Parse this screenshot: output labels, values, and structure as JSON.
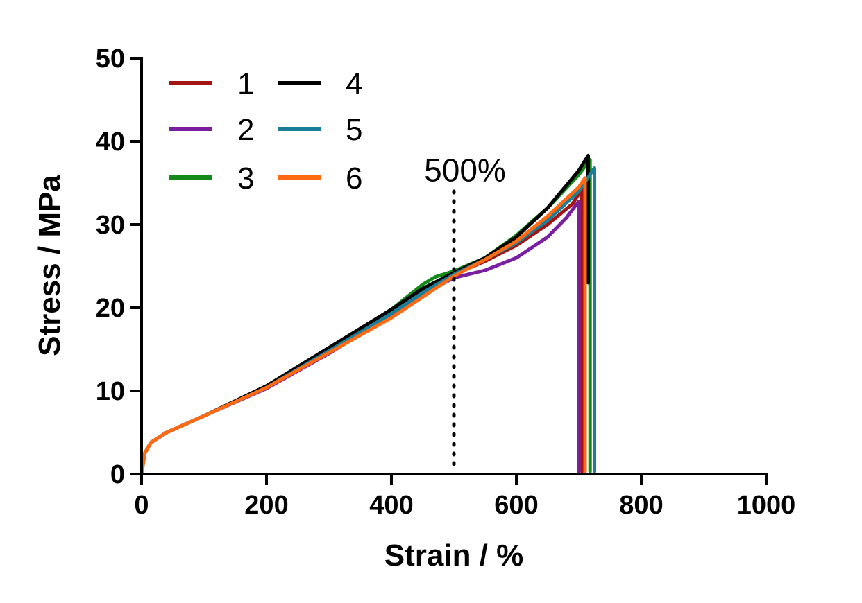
{
  "chart_data": {
    "type": "line",
    "title": "",
    "xlabel": "Strain / %",
    "ylabel": "Stress / MPa",
    "xlim": [
      0,
      1000
    ],
    "ylim": [
      0,
      50
    ],
    "xticks": [
      0,
      200,
      400,
      600,
      800,
      1000
    ],
    "yticks": [
      0,
      10,
      20,
      30,
      40,
      50
    ],
    "grid": false,
    "legend_position": "top-left",
    "annotation": {
      "text": "500%",
      "x": 500
    },
    "series": [
      {
        "name": "1",
        "color": "#a31515",
        "points": [
          [
            0,
            0
          ],
          [
            5,
            2.5
          ],
          [
            15,
            3.8
          ],
          [
            40,
            5
          ],
          [
            100,
            7
          ],
          [
            200,
            10.5
          ],
          [
            300,
            14.8
          ],
          [
            400,
            19.3
          ],
          [
            450,
            21.8
          ],
          [
            500,
            24
          ],
          [
            550,
            25.6
          ],
          [
            600,
            27.5
          ],
          [
            650,
            30
          ],
          [
            690,
            32.5
          ],
          [
            705,
            34.3
          ],
          [
            705,
            0.3
          ]
        ]
      },
      {
        "name": "2",
        "color": "#7b1fa2",
        "points": [
          [
            0,
            0
          ],
          [
            5,
            2.5
          ],
          [
            15,
            3.8
          ],
          [
            40,
            5
          ],
          [
            100,
            7
          ],
          [
            200,
            10.3
          ],
          [
            300,
            14.5
          ],
          [
            400,
            19.1
          ],
          [
            450,
            21.6
          ],
          [
            500,
            23.6
          ],
          [
            550,
            24.5
          ],
          [
            600,
            26
          ],
          [
            650,
            28.5
          ],
          [
            680,
            30.8
          ],
          [
            700,
            32.8
          ],
          [
            700,
            0.3
          ]
        ]
      },
      {
        "name": "3",
        "color": "#138a1a",
        "points": [
          [
            0,
            0
          ],
          [
            5,
            2.5
          ],
          [
            15,
            3.8
          ],
          [
            40,
            5
          ],
          [
            100,
            7
          ],
          [
            200,
            10.5
          ],
          [
            300,
            15
          ],
          [
            400,
            19.8
          ],
          [
            450,
            22.8
          ],
          [
            470,
            23.7
          ],
          [
            500,
            24.4
          ],
          [
            550,
            26
          ],
          [
            600,
            28.7
          ],
          [
            650,
            32
          ],
          [
            700,
            36
          ],
          [
            718,
            37.8
          ],
          [
            718,
            0.3
          ]
        ]
      },
      {
        "name": "4",
        "color": "#000000",
        "points": [
          [
            0,
            0
          ],
          [
            5,
            2.5
          ],
          [
            15,
            3.8
          ],
          [
            40,
            5
          ],
          [
            100,
            7
          ],
          [
            200,
            10.6
          ],
          [
            300,
            15.2
          ],
          [
            400,
            19.8
          ],
          [
            450,
            22.3
          ],
          [
            500,
            24.2
          ],
          [
            550,
            26
          ],
          [
            600,
            28.5
          ],
          [
            650,
            32
          ],
          [
            700,
            36.5
          ],
          [
            715,
            38.3
          ],
          [
            715,
            23
          ]
        ]
      },
      {
        "name": "5",
        "color": "#1c7f9a",
        "points": [
          [
            0,
            0
          ],
          [
            5,
            2.5
          ],
          [
            15,
            3.8
          ],
          [
            40,
            5
          ],
          [
            100,
            7
          ],
          [
            200,
            10.4
          ],
          [
            300,
            14.8
          ],
          [
            400,
            19.3
          ],
          [
            450,
            21.8
          ],
          [
            500,
            24
          ],
          [
            550,
            25.8
          ],
          [
            600,
            27.8
          ],
          [
            650,
            30.5
          ],
          [
            700,
            34
          ],
          [
            725,
            36.8
          ],
          [
            725,
            0.3
          ]
        ]
      },
      {
        "name": "6",
        "color": "#ff6a13",
        "points": [
          [
            0,
            0
          ],
          [
            5,
            2.5
          ],
          [
            15,
            3.8
          ],
          [
            40,
            5
          ],
          [
            100,
            7
          ],
          [
            200,
            10.4
          ],
          [
            300,
            14.6
          ],
          [
            400,
            18.8
          ],
          [
            450,
            21.3
          ],
          [
            500,
            23.8
          ],
          [
            550,
            25.8
          ],
          [
            600,
            28
          ],
          [
            650,
            31
          ],
          [
            700,
            34.5
          ],
          [
            710,
            35.6
          ],
          [
            710,
            0.3
          ]
        ]
      }
    ]
  }
}
